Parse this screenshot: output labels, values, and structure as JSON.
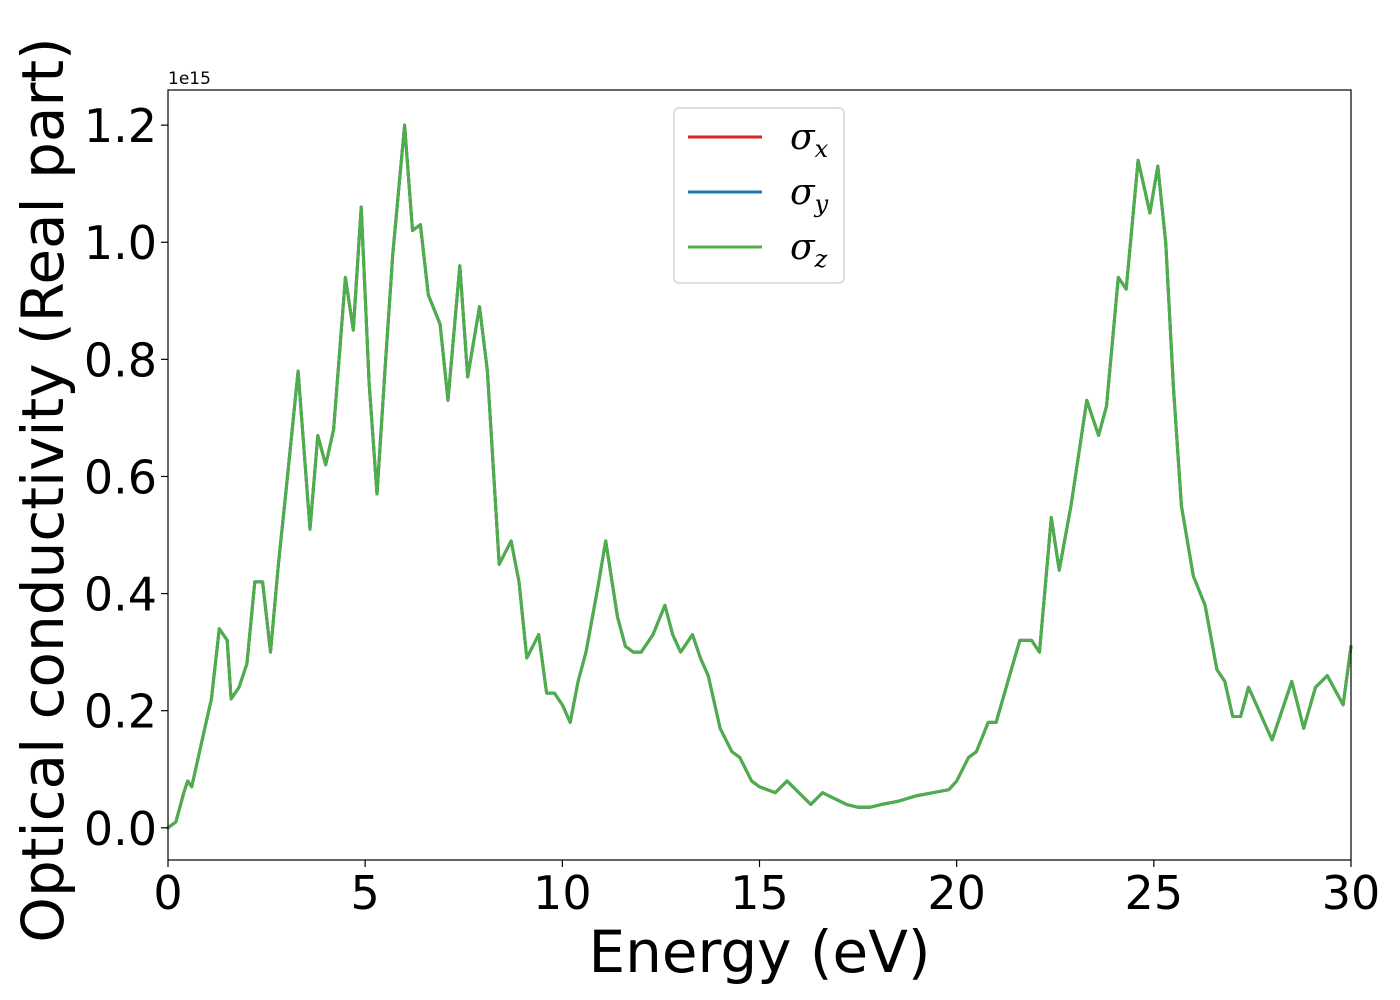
{
  "chart_data": {
    "type": "line",
    "title": "",
    "xlabel": "Energy (eV)",
    "ylabel": "Optical conductivity (Real part)",
    "y_offset_label": "1e15",
    "xlim": [
      0,
      30
    ],
    "ylim": [
      -0.055,
      1.26
    ],
    "xticks": [
      0,
      5,
      10,
      15,
      20,
      25,
      30
    ],
    "xtick_labels": [
      "0",
      "5",
      "10",
      "15",
      "20",
      "25",
      "30"
    ],
    "yticks": [
      0.0,
      0.2,
      0.4,
      0.6,
      0.8,
      1.0,
      1.2
    ],
    "ytick_labels": [
      "0.0",
      "0.2",
      "0.4",
      "0.6",
      "0.8",
      "1.0",
      "1.2"
    ],
    "grid": false,
    "legend_position": "upper-center",
    "x": [
      0,
      0.2,
      0.4,
      0.5,
      0.6,
      0.9,
      1.1,
      1.3,
      1.5,
      1.6,
      1.8,
      2.0,
      2.2,
      2.4,
      2.6,
      2.8,
      3.0,
      3.3,
      3.6,
      3.8,
      4.0,
      4.2,
      4.5,
      4.7,
      4.9,
      5.1,
      5.3,
      5.5,
      5.7,
      6.0,
      6.2,
      6.4,
      6.6,
      6.9,
      7.1,
      7.4,
      7.6,
      7.9,
      8.1,
      8.4,
      8.7,
      8.9,
      9.1,
      9.4,
      9.6,
      9.8,
      10.0,
      10.2,
      10.4,
      10.6,
      10.9,
      11.1,
      11.4,
      11.6,
      11.8,
      12.0,
      12.3,
      12.6,
      12.8,
      13.0,
      13.3,
      13.5,
      13.7,
      14.0,
      14.3,
      14.5,
      14.8,
      15.0,
      15.4,
      15.7,
      16.0,
      16.3,
      16.6,
      16.9,
      17.2,
      17.5,
      17.8,
      18.1,
      18.5,
      19.0,
      19.4,
      19.8,
      20.0,
      20.3,
      20.5,
      20.8,
      21.0,
      21.3,
      21.6,
      21.9,
      22.1,
      22.4,
      22.6,
      22.9,
      23.3,
      23.6,
      23.8,
      24.1,
      24.3,
      24.6,
      24.9,
      25.1,
      25.3,
      25.5,
      25.7,
      26.0,
      26.3,
      26.6,
      26.8,
      27.0,
      27.2,
      27.4,
      27.6,
      27.8,
      28.0,
      28.2,
      28.5,
      28.8,
      29.1,
      29.4,
      29.8,
      30.0
    ],
    "series": [
      {
        "name": "σx",
        "label_base": "σ",
        "label_sub": "x",
        "color": "#d62728",
        "values": [
          0.0,
          0.01,
          0.06,
          0.08,
          0.07,
          0.16,
          0.22,
          0.34,
          0.32,
          0.22,
          0.24,
          0.28,
          0.42,
          0.42,
          0.3,
          0.45,
          0.58,
          0.78,
          0.51,
          0.67,
          0.62,
          0.68,
          0.94,
          0.85,
          1.06,
          0.76,
          0.57,
          0.78,
          0.98,
          1.2,
          1.02,
          1.03,
          0.91,
          0.86,
          0.73,
          0.96,
          0.77,
          0.89,
          0.78,
          0.45,
          0.49,
          0.42,
          0.29,
          0.33,
          0.23,
          0.23,
          0.21,
          0.18,
          0.25,
          0.3,
          0.41,
          0.49,
          0.36,
          0.31,
          0.3,
          0.3,
          0.33,
          0.38,
          0.33,
          0.3,
          0.33,
          0.29,
          0.26,
          0.17,
          0.13,
          0.12,
          0.08,
          0.07,
          0.06,
          0.08,
          0.06,
          0.04,
          0.06,
          0.05,
          0.04,
          0.035,
          0.035,
          0.04,
          0.045,
          0.055,
          0.06,
          0.065,
          0.08,
          0.12,
          0.13,
          0.18,
          0.18,
          0.25,
          0.32,
          0.32,
          0.3,
          0.53,
          0.44,
          0.55,
          0.73,
          0.67,
          0.72,
          0.94,
          0.92,
          1.14,
          1.05,
          1.13,
          1.0,
          0.75,
          0.55,
          0.43,
          0.38,
          0.27,
          0.25,
          0.19,
          0.19,
          0.24,
          0.21,
          0.18,
          0.15,
          0.19,
          0.25,
          0.17,
          0.24,
          0.26,
          0.21,
          0.31
        ]
      },
      {
        "name": "σy",
        "label_base": "σ",
        "label_sub": "y",
        "color": "#1f77b4",
        "values": [
          0.0,
          0.01,
          0.06,
          0.08,
          0.07,
          0.16,
          0.22,
          0.34,
          0.32,
          0.22,
          0.24,
          0.28,
          0.42,
          0.42,
          0.3,
          0.45,
          0.58,
          0.78,
          0.51,
          0.67,
          0.62,
          0.68,
          0.94,
          0.85,
          1.06,
          0.76,
          0.57,
          0.78,
          0.98,
          1.2,
          1.02,
          1.03,
          0.91,
          0.86,
          0.73,
          0.96,
          0.77,
          0.89,
          0.78,
          0.45,
          0.49,
          0.42,
          0.29,
          0.33,
          0.23,
          0.23,
          0.21,
          0.18,
          0.25,
          0.3,
          0.41,
          0.49,
          0.36,
          0.31,
          0.3,
          0.3,
          0.33,
          0.38,
          0.33,
          0.3,
          0.33,
          0.29,
          0.26,
          0.17,
          0.13,
          0.12,
          0.08,
          0.07,
          0.06,
          0.08,
          0.06,
          0.04,
          0.06,
          0.05,
          0.04,
          0.035,
          0.035,
          0.04,
          0.045,
          0.055,
          0.06,
          0.065,
          0.08,
          0.12,
          0.13,
          0.18,
          0.18,
          0.25,
          0.32,
          0.32,
          0.3,
          0.53,
          0.44,
          0.55,
          0.73,
          0.67,
          0.72,
          0.94,
          0.92,
          1.14,
          1.05,
          1.13,
          1.0,
          0.75,
          0.55,
          0.43,
          0.38,
          0.27,
          0.25,
          0.19,
          0.19,
          0.24,
          0.21,
          0.18,
          0.15,
          0.19,
          0.25,
          0.17,
          0.24,
          0.26,
          0.21,
          0.31
        ]
      },
      {
        "name": "σz",
        "label_base": "σ",
        "label_sub": "z",
        "color": "#4daf4a",
        "values": [
          0.0,
          0.01,
          0.06,
          0.08,
          0.07,
          0.16,
          0.22,
          0.34,
          0.32,
          0.22,
          0.24,
          0.28,
          0.42,
          0.42,
          0.3,
          0.45,
          0.58,
          0.78,
          0.51,
          0.67,
          0.62,
          0.68,
          0.94,
          0.85,
          1.06,
          0.76,
          0.57,
          0.78,
          0.98,
          1.2,
          1.02,
          1.03,
          0.91,
          0.86,
          0.73,
          0.96,
          0.77,
          0.89,
          0.78,
          0.45,
          0.49,
          0.42,
          0.29,
          0.33,
          0.23,
          0.23,
          0.21,
          0.18,
          0.25,
          0.3,
          0.41,
          0.49,
          0.36,
          0.31,
          0.3,
          0.3,
          0.33,
          0.38,
          0.33,
          0.3,
          0.33,
          0.29,
          0.26,
          0.17,
          0.13,
          0.12,
          0.08,
          0.07,
          0.06,
          0.08,
          0.06,
          0.04,
          0.06,
          0.05,
          0.04,
          0.035,
          0.035,
          0.04,
          0.045,
          0.055,
          0.06,
          0.065,
          0.08,
          0.12,
          0.13,
          0.18,
          0.18,
          0.25,
          0.32,
          0.32,
          0.3,
          0.53,
          0.44,
          0.55,
          0.73,
          0.67,
          0.72,
          0.94,
          0.92,
          1.14,
          1.05,
          1.13,
          1.0,
          0.75,
          0.55,
          0.43,
          0.38,
          0.27,
          0.25,
          0.19,
          0.19,
          0.24,
          0.21,
          0.18,
          0.15,
          0.19,
          0.25,
          0.17,
          0.24,
          0.26,
          0.21,
          0.31
        ]
      }
    ]
  }
}
